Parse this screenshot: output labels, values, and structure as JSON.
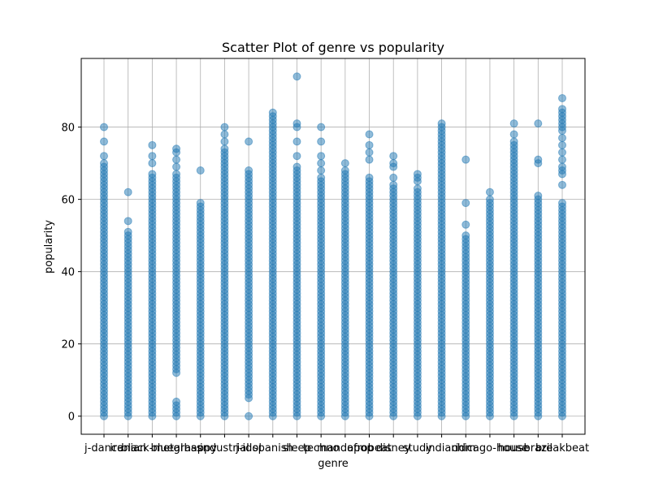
{
  "chart_data": {
    "type": "scatter",
    "title": "Scatter Plot of genre vs popularity",
    "xlabel": "genre",
    "ylabel": "popularity",
    "categories": [
      "j-dance",
      "iranian",
      "black-metal",
      "bluegrass",
      "happy",
      "industrial",
      "j-idol",
      "spanish",
      "sleep",
      "techno",
      "mandopop",
      "afrobeat",
      "disney",
      "study",
      "indian",
      "idm",
      "chicago-house",
      "house",
      "brazil",
      "breakbeat"
    ],
    "ylim": [
      -5,
      99
    ],
    "yticks": [
      0,
      20,
      40,
      60,
      80
    ],
    "grid": true,
    "marker_color": "#1f77b4",
    "marker_alpha": 0.5,
    "series": [
      {
        "category": "j-dance",
        "range": [
          0,
          70
        ],
        "extra": [
          72,
          76,
          80
        ]
      },
      {
        "category": "iranian",
        "range": [
          0,
          51
        ],
        "extra": [
          54,
          62
        ]
      },
      {
        "category": "black-metal",
        "range": [
          0,
          67
        ],
        "extra": [
          70,
          72,
          75
        ]
      },
      {
        "category": "bluegrass",
        "range": [
          12,
          67
        ],
        "extra": [
          0,
          1,
          2,
          3,
          4,
          69,
          71,
          73,
          74
        ]
      },
      {
        "category": "happy",
        "range": [
          0,
          59
        ],
        "extra": [
          68
        ]
      },
      {
        "category": "industrial",
        "range": [
          0,
          74
        ],
        "extra": [
          76,
          78,
          80
        ]
      },
      {
        "category": "j-idol",
        "range": [
          5,
          68
        ],
        "extra": [
          0,
          76
        ]
      },
      {
        "category": "spanish",
        "range": [
          0,
          84
        ],
        "extra": []
      },
      {
        "category": "sleep",
        "range": [
          0,
          69
        ],
        "extra": [
          72,
          76,
          80,
          81,
          94
        ]
      },
      {
        "category": "techno",
        "range": [
          0,
          66
        ],
        "extra": [
          68,
          70,
          72,
          76,
          80
        ]
      },
      {
        "category": "mandopop",
        "range": [
          0,
          68
        ],
        "extra": [
          70
        ]
      },
      {
        "category": "afrobeat",
        "range": [
          0,
          66
        ],
        "extra": [
          71,
          73,
          75,
          78
        ]
      },
      {
        "category": "disney",
        "range": [
          0,
          64
        ],
        "extra": [
          66,
          69,
          70,
          72
        ]
      },
      {
        "category": "study",
        "range": [
          0,
          62
        ],
        "extra": [
          63,
          65,
          66,
          67
        ]
      },
      {
        "category": "indian",
        "range": [
          0,
          79
        ],
        "extra": [
          80,
          81
        ]
      },
      {
        "category": "idm",
        "range": [
          0,
          50
        ],
        "extra": [
          53,
          59,
          71
        ]
      },
      {
        "category": "chicago-house",
        "range": [
          0,
          60
        ],
        "extra": [
          62
        ]
      },
      {
        "category": "house",
        "range": [
          0,
          76
        ],
        "extra": [
          78,
          81
        ]
      },
      {
        "category": "brazil",
        "range": [
          0,
          61
        ],
        "extra": [
          70,
          71,
          81
        ]
      },
      {
        "category": "breakbeat",
        "range": [
          0,
          59
        ],
        "extra": [
          64,
          67,
          68,
          69,
          71,
          73,
          75,
          77,
          79,
          80,
          81,
          82,
          83,
          84,
          85,
          88
        ]
      }
    ]
  }
}
